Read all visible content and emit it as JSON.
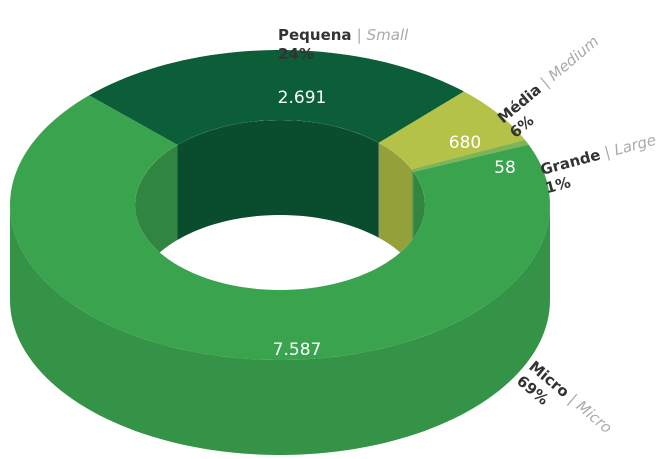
{
  "chart_data": {
    "type": "pie",
    "categories": [
      "Micro",
      "Pequena",
      "Média",
      "Grande"
    ],
    "translations": [
      "Micro",
      "Small",
      "Medium",
      "Large"
    ],
    "separator": "|",
    "values": [
      7587,
      2691,
      680,
      58
    ],
    "value_labels": [
      "7.587",
      "2.691",
      "680",
      "58"
    ],
    "percents": [
      69,
      24,
      6,
      1
    ],
    "percent_labels": [
      "69%",
      "24%",
      "6%",
      "1%"
    ],
    "colors": [
      "#3aa34e",
      "#0b5e38",
      "#b4c347",
      "#7db457"
    ]
  }
}
